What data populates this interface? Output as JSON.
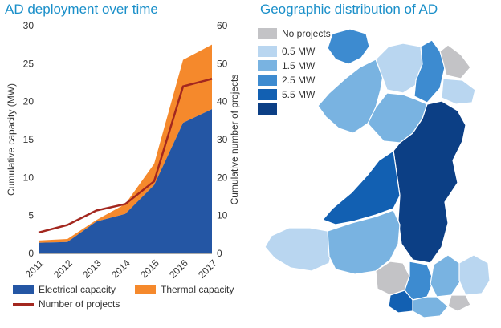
{
  "chart_title": "AD deployment over time",
  "map_title": "Geographic distribution of AD",
  "chart_data": {
    "type": "area",
    "title": "AD deployment over time",
    "categories": [
      "2011",
      "2012",
      "2013",
      "2014",
      "2015",
      "2016",
      "2017"
    ],
    "ylabel": "Cumulative capacity (MW)",
    "y2label": "Cumulative number of projects",
    "ylim": [
      0,
      30
    ],
    "y2lim": [
      0,
      60
    ],
    "yticks": [
      "0",
      "5",
      "10",
      "15",
      "20",
      "25",
      "30"
    ],
    "y2ticks": [
      "0",
      "10",
      "20",
      "30",
      "40",
      "50",
      "60"
    ],
    "series": [
      {
        "name": "Electrical capacity",
        "type": "area",
        "axis": "left",
        "color": "#2456a4",
        "values": [
          1.4,
          1.5,
          4.2,
          5.2,
          9.0,
          17.2,
          19.0
        ]
      },
      {
        "name": "Thermal capacity",
        "type": "area",
        "axis": "left",
        "color": "#f5892c",
        "values": [
          0.3,
          0.4,
          0.2,
          1.3,
          2.8,
          8.3,
          8.5
        ]
      },
      {
        "name": "Number of projects",
        "type": "line",
        "axis": "right",
        "color": "#a3271f",
        "values": [
          5.5,
          7.5,
          11.3,
          13.0,
          19.0,
          44.0,
          46.0
        ]
      }
    ],
    "legend_position": "bottom"
  },
  "map_legend": [
    {
      "label": "No projects",
      "color": "#c3c3c6"
    },
    {
      "label": "0.5 MW",
      "color": "#b9d6f0"
    },
    {
      "label": "1.5 MW",
      "color": "#79b3e1"
    },
    {
      "label": "2.5 MW",
      "color": "#3d8bd0"
    },
    {
      "label": "5.5 MW",
      "color": "#1260b2"
    },
    {
      "label": "",
      "color": "#0c3f85"
    }
  ],
  "colors": {
    "title": "#1a8fc9",
    "axis_text": "#333333",
    "map_edge": "#ffffff"
  }
}
